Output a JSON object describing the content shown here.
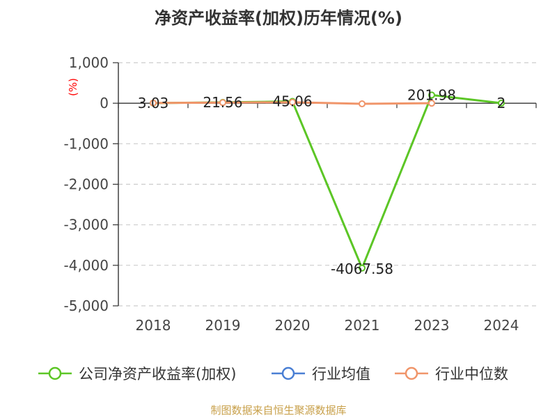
{
  "title": "净资产收益率(加权)历年情况(%)",
  "source": "制图数据来自恒生聚源数据库",
  "chart_data": {
    "type": "line",
    "title": "净资产收益率(加权)历年情况(%)",
    "ylabel": "(%)",
    "xlabel": "",
    "categories": [
      "2018",
      "2019",
      "2020",
      "2021",
      "2023",
      "2024"
    ],
    "ylim": [
      -5000,
      1000
    ],
    "yticks": [
      1000,
      0,
      -1000,
      -2000,
      -3000,
      -4000,
      -5000
    ],
    "ytick_labels": [
      "1,000",
      "0",
      "-1,000",
      "-2,000",
      "-3,000",
      "-4,000",
      "-5,000"
    ],
    "grid": true,
    "legend_position": "bottom",
    "series": [
      {
        "name": "公司净资产收益率(加权)",
        "color": "#5cc626",
        "values": [
          3.03,
          21.56,
          45.06,
          -4067.58,
          201.98,
          2
        ],
        "labels": [
          "3.03",
          "21.56",
          "45.06",
          "-4067.58",
          "201.98",
          "2"
        ]
      },
      {
        "name": "行业均值",
        "color": "#4a7fd4",
        "values": [
          null,
          null,
          null,
          null,
          null,
          null
        ]
      },
      {
        "name": "行业中位数",
        "color": "#f0956a",
        "values": [
          5,
          15,
          25,
          -15,
          0,
          null
        ]
      }
    ]
  }
}
